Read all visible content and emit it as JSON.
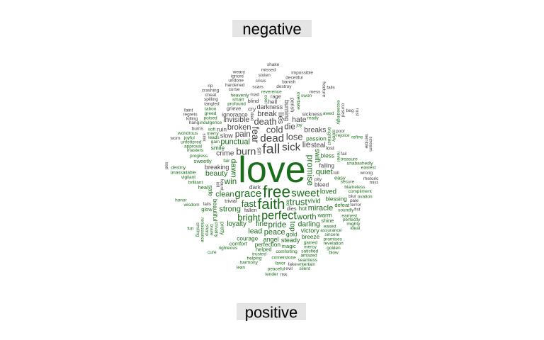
{
  "chart_data": {
    "type": "wordcloud",
    "title": "",
    "groups": [
      {
        "name": "negative",
        "color": "#444444"
      },
      {
        "name": "positive",
        "color": "#1a6e1a"
      }
    ],
    "positive_words": [
      {
        "word": "love",
        "weight": 100
      },
      {
        "word": "free",
        "weight": 36
      },
      {
        "word": "faith",
        "weight": 32
      },
      {
        "word": "perfect",
        "weight": 24
      },
      {
        "word": "grace",
        "weight": 22
      },
      {
        "word": "sweet",
        "weight": 22
      },
      {
        "word": "fast",
        "weight": 18
      },
      {
        "word": "trust",
        "weight": 18
      },
      {
        "word": "bright",
        "weight": 18
      },
      {
        "word": "promise",
        "weight": 17
      },
      {
        "word": "win",
        "weight": 16
      },
      {
        "word": "pride",
        "weight": 16
      },
      {
        "word": "clean",
        "weight": 15
      },
      {
        "word": "dawn",
        "weight": 15
      },
      {
        "word": "strong",
        "weight": 15
      },
      {
        "word": "peace",
        "weight": 15
      },
      {
        "word": "worth",
        "weight": 15
      },
      {
        "word": "punctual",
        "weight": 15
      },
      {
        "word": "miracle",
        "weight": 15
      },
      {
        "word": "quiet",
        "weight": 15
      },
      {
        "word": "beauty",
        "weight": 14
      },
      {
        "word": "darling",
        "weight": 14
      },
      {
        "word": "fine",
        "weight": 14
      },
      {
        "word": "lead",
        "weight": 14
      },
      {
        "word": "top",
        "weight": 14
      },
      {
        "word": "loyalty",
        "weight": 13
      },
      {
        "word": "loved",
        "weight": 13
      },
      {
        "word": "swift",
        "weight": 13
      },
      {
        "word": "vivid",
        "weight": 12
      },
      {
        "word": "angel",
        "weight": 12
      },
      {
        "word": "victory",
        "weight": 12
      },
      {
        "word": "steady",
        "weight": 12
      },
      {
        "word": "hot",
        "weight": 11
      },
      {
        "word": "gold",
        "weight": 11
      },
      {
        "word": "bless",
        "weight": 11
      },
      {
        "word": "warm",
        "weight": 11
      },
      {
        "word": "safe",
        "weight": 11
      },
      {
        "word": "courage",
        "weight": 11
      },
      {
        "word": "passion",
        "weight": 11
      },
      {
        "word": "perfection",
        "weight": 11
      },
      {
        "word": "smile",
        "weight": 11
      },
      {
        "word": "blessing",
        "weight": 11
      },
      {
        "word": "breeze",
        "weight": 11
      },
      {
        "word": "beautiful",
        "weight": 11
      },
      {
        "word": "easy",
        "weight": 10
      },
      {
        "word": "shine",
        "weight": 10
      },
      {
        "word": "magic",
        "weight": 10
      },
      {
        "word": "helped",
        "weight": 10
      },
      {
        "word": "heal",
        "weight": 10
      },
      {
        "word": "pretty",
        "weight": 10
      },
      {
        "word": "comfort",
        "weight": 10
      },
      {
        "word": "glow",
        "weight": 10
      },
      {
        "word": "sweetly",
        "weight": 10
      },
      {
        "word": "defeat",
        "weight": 10
      },
      {
        "word": "revel",
        "weight": 9
      },
      {
        "word": "comforting",
        "weight": 9
      },
      {
        "word": "eased",
        "weight": 9
      },
      {
        "word": "gained",
        "weight": 9
      },
      {
        "word": "secure",
        "weight": 9
      },
      {
        "word": "trusted",
        "weight": 9
      },
      {
        "word": "brilliant",
        "weight": 9
      },
      {
        "word": "chivalry",
        "weight": 9
      },
      {
        "word": "assurance",
        "weight": 9
      },
      {
        "word": "fair",
        "weight": 9
      },
      {
        "word": "gain",
        "weight": 9
      },
      {
        "word": "leads",
        "weight": 9
      },
      {
        "word": "mercy",
        "weight": 9
      },
      {
        "word": "progress",
        "weight": 9
      },
      {
        "word": "brightest",
        "weight": 9
      },
      {
        "word": "merry",
        "weight": 9
      },
      {
        "word": "soundly",
        "weight": 9
      },
      {
        "word": "cornerstone",
        "weight": 9
      },
      {
        "word": "treasure",
        "weight": 9
      },
      {
        "word": "sincere",
        "weight": 9
      },
      {
        "word": "satisfied",
        "weight": 9
      },
      {
        "word": "brave",
        "weight": 9
      },
      {
        "word": "helping",
        "weight": 9
      },
      {
        "word": "righteous",
        "weight": 9
      },
      {
        "word": "ready",
        "weight": 9
      },
      {
        "word": "blameless",
        "weight": 9
      },
      {
        "word": "wisdom",
        "weight": 9
      },
      {
        "word": "vigilant",
        "weight": 9
      },
      {
        "word": "safely",
        "weight": 9
      },
      {
        "word": "masters",
        "weight": 9
      },
      {
        "word": "earnest",
        "weight": 9
      },
      {
        "word": "promises",
        "weight": 9
      },
      {
        "word": "amazed",
        "weight": 9
      },
      {
        "word": "soft",
        "weight": 9
      },
      {
        "word": "favor",
        "weight": 9
      },
      {
        "word": "sharp",
        "weight": 9
      },
      {
        "word": "harmony",
        "weight": 9
      },
      {
        "word": "joy",
        "weight": 9
      },
      {
        "word": "approval",
        "weight": 9
      },
      {
        "word": "indulgence",
        "weight": 9
      },
      {
        "word": "compliment",
        "weight": 9
      },
      {
        "word": "rejoice",
        "weight": 9
      },
      {
        "word": "renaissance",
        "weight": 9
      },
      {
        "word": "perfectly",
        "weight": 9
      },
      {
        "word": "revelation",
        "weight": 9
      },
      {
        "word": "seamless",
        "weight": 9
      },
      {
        "word": "unassailable",
        "weight": 9
      },
      {
        "word": "unabashedly",
        "weight": 9
      },
      {
        "word": "profound",
        "weight": 9
      },
      {
        "word": "smiling",
        "weight": 9
      },
      {
        "word": "peaceful",
        "weight": 9
      },
      {
        "word": "unfettered",
        "weight": 9
      },
      {
        "word": "poised",
        "weight": 9
      },
      {
        "word": "mighty",
        "weight": 9
      },
      {
        "word": "golden",
        "weight": 9
      },
      {
        "word": "entertain",
        "weight": 9
      },
      {
        "word": "overtake",
        "weight": 9
      },
      {
        "word": "awed",
        "weight": 9
      },
      {
        "word": "honor",
        "weight": 9
      },
      {
        "word": "smart",
        "weight": 9
      },
      {
        "word": "ovation",
        "weight": 9
      },
      {
        "word": "lean",
        "weight": 9
      },
      {
        "word": "cure",
        "weight": 9
      },
      {
        "word": "led",
        "weight": 9
      },
      {
        "word": "destiny",
        "weight": 9
      },
      {
        "word": "joyful",
        "weight": 9
      },
      {
        "word": "greed",
        "weight": 9
      },
      {
        "word": "reverence",
        "weight": 9
      },
      {
        "word": "tender",
        "weight": 9
      },
      {
        "word": "heavenly",
        "weight": 9
      },
      {
        "word": "cool",
        "weight": 9
      },
      {
        "word": "fun",
        "weight": 9
      },
      {
        "word": "ideal",
        "weight": 9
      },
      {
        "word": "silent",
        "weight": 9
      },
      {
        "word": "swon",
        "weight": 9
      },
      {
        "word": "refine",
        "weight": 9
      },
      {
        "word": "easiest",
        "weight": 9
      },
      {
        "word": "exceedingly",
        "weight": 9
      },
      {
        "word": "wondrous",
        "weight": 9
      },
      {
        "word": "taboo",
        "weight": 9
      },
      {
        "word": "blow",
        "weight": 9
      }
    ],
    "negative_words": [
      {
        "word": "fall",
        "weight": 30
      },
      {
        "word": "dead",
        "weight": 22
      },
      {
        "word": "sick",
        "weight": 22
      },
      {
        "word": "burn",
        "weight": 20
      },
      {
        "word": "fear",
        "weight": 19
      },
      {
        "word": "cold",
        "weight": 18
      },
      {
        "word": "lose",
        "weight": 18
      },
      {
        "word": "death",
        "weight": 18
      },
      {
        "word": "pain",
        "weight": 16
      },
      {
        "word": "die",
        "weight": 16
      },
      {
        "word": "lie",
        "weight": 16
      },
      {
        "word": "lies",
        "weight": 15
      },
      {
        "word": "crime",
        "weight": 14
      },
      {
        "word": "broken",
        "weight": 15
      },
      {
        "word": "break",
        "weight": 15
      },
      {
        "word": "hate",
        "weight": 14
      },
      {
        "word": "breaks",
        "weight": 14
      },
      {
        "word": "invisible",
        "weight": 14
      },
      {
        "word": "steal",
        "weight": 13
      },
      {
        "word": "darkness",
        "weight": 12
      },
      {
        "word": "burning",
        "weight": 12
      },
      {
        "word": "breaking",
        "weight": 12
      },
      {
        "word": "slow",
        "weight": 12
      },
      {
        "word": "dark",
        "weight": 11
      },
      {
        "word": "ignorance",
        "weight": 11
      },
      {
        "word": "falling",
        "weight": 11
      },
      {
        "word": "bleed",
        "weight": 11
      },
      {
        "word": "ruin",
        "weight": 11
      },
      {
        "word": "cry",
        "weight": 11
      },
      {
        "word": "sin",
        "weight": 11
      },
      {
        "word": "dies",
        "weight": 10
      },
      {
        "word": "hell",
        "weight": 11
      },
      {
        "word": "lost",
        "weight": 10
      },
      {
        "word": "perish",
        "weight": 10
      },
      {
        "word": "fallen",
        "weight": 10
      },
      {
        "word": "sickness",
        "weight": 10
      },
      {
        "word": "trivial",
        "weight": 10
      },
      {
        "word": "blind",
        "weight": 10
      },
      {
        "word": "grieve",
        "weight": 10
      },
      {
        "word": "rage",
        "weight": 10
      },
      {
        "word": "scars",
        "weight": 9
      },
      {
        "word": "mad",
        "weight": 9
      },
      {
        "word": "destroy",
        "weight": 9
      },
      {
        "word": "died",
        "weight": 9
      },
      {
        "word": "burns",
        "weight": 9
      },
      {
        "word": "curse",
        "weight": 9
      },
      {
        "word": "crisis",
        "weight": 9
      },
      {
        "word": "banish",
        "weight": 9
      },
      {
        "word": "mess",
        "weight": 9
      },
      {
        "word": "tangled",
        "weight": 9
      },
      {
        "word": "haunt",
        "weight": 9
      },
      {
        "word": "hardened",
        "weight": 9
      },
      {
        "word": "spilling",
        "weight": 9
      },
      {
        "word": "poor",
        "weight": 9
      },
      {
        "word": "pity",
        "weight": 9
      },
      {
        "word": "fails",
        "weight": 9
      },
      {
        "word": "stolen",
        "weight": 9
      },
      {
        "word": "cursed",
        "weight": 9
      },
      {
        "word": "deceitful",
        "weight": 9
      },
      {
        "word": "undone",
        "weight": 9
      },
      {
        "word": "hang",
        "weight": 9
      },
      {
        "word": "killing",
        "weight": 9
      },
      {
        "word": "cheat",
        "weight": 9
      },
      {
        "word": "ignore",
        "weight": 9
      },
      {
        "word": "fracture",
        "weight": 9
      },
      {
        "word": "missed",
        "weight": 9
      },
      {
        "word": "impossible",
        "weight": 9
      },
      {
        "word": "regrets",
        "weight": 9
      },
      {
        "word": "blur",
        "weight": 9
      },
      {
        "word": "crashing",
        "weight": 9
      },
      {
        "word": "beg",
        "weight": 9
      },
      {
        "word": "kill",
        "weight": 9
      },
      {
        "word": "falls",
        "weight": 9
      },
      {
        "word": "weary",
        "weight": 9
      },
      {
        "word": "wrong",
        "weight": 9
      },
      {
        "word": "shake",
        "weight": 9
      },
      {
        "word": "drowning",
        "weight": 9
      },
      {
        "word": "rhetoric",
        "weight": 9
      },
      {
        "word": "terrible",
        "weight": 9
      },
      {
        "word": "enemy",
        "weight": 9
      },
      {
        "word": "terror",
        "weight": 9
      },
      {
        "word": "sober",
        "weight": 9
      },
      {
        "word": "worn",
        "weight": 9
      },
      {
        "word": "jaded",
        "weight": 9
      },
      {
        "word": "wounds",
        "weight": 9
      },
      {
        "word": "scream",
        "weight": 9
      },
      {
        "word": "pale",
        "weight": 9
      },
      {
        "word": "terribly",
        "weight": 9
      },
      {
        "word": "mystery",
        "weight": 9
      },
      {
        "word": "limits",
        "weight": 9
      },
      {
        "word": "misgivings",
        "weight": 9
      },
      {
        "word": "stabtwist",
        "weight": 9
      },
      {
        "word": "strange",
        "weight": 9
      },
      {
        "word": "faint",
        "weight": 9
      },
      {
        "word": "failure",
        "weight": 9
      },
      {
        "word": "mist",
        "weight": 9
      },
      {
        "word": "worry",
        "weight": 9
      },
      {
        "word": "murder",
        "weight": 9
      },
      {
        "word": "toll",
        "weight": 9
      },
      {
        "word": "sink",
        "weight": 9
      },
      {
        "word": "nemesis",
        "weight": 9
      },
      {
        "word": "stranger",
        "weight": 9
      },
      {
        "word": "prison",
        "weight": 9
      },
      {
        "word": "fake",
        "weight": 9
      },
      {
        "word": "fears",
        "weight": 9
      },
      {
        "word": "tyranny",
        "weight": 9
      },
      {
        "word": "rust",
        "weight": 9
      },
      {
        "word": "vanity",
        "weight": 9
      },
      {
        "word": "evil",
        "weight": 9
      },
      {
        "word": "violent",
        "weight": 9
      },
      {
        "word": "scared",
        "weight": 9
      },
      {
        "word": "feeble",
        "weight": 9
      },
      {
        "word": "swelling",
        "weight": 9
      },
      {
        "word": "suffering",
        "weight": 9
      },
      {
        "word": "battered",
        "weight": 9
      },
      {
        "word": "stinging",
        "weight": 9
      },
      {
        "word": "unclear",
        "weight": 9
      },
      {
        "word": "afraid",
        "weight": 9
      },
      {
        "word": "shocked",
        "weight": 9
      },
      {
        "word": "exile",
        "weight": 9
      },
      {
        "word": "crumbling",
        "weight": 9
      },
      {
        "word": "strike",
        "weight": 9
      },
      {
        "word": "darkened",
        "weight": 9
      },
      {
        "word": "begging",
        "weight": 9
      },
      {
        "word": "avenge",
        "weight": 9
      },
      {
        "word": "knife",
        "weight": 9
      },
      {
        "word": "unyielding",
        "weight": 9
      },
      {
        "word": "ragged",
        "weight": 9
      },
      {
        "word": "dust",
        "weight": 9
      },
      {
        "word": "bleeding",
        "weight": 9
      },
      {
        "word": "poison",
        "weight": 9
      },
      {
        "word": "sting",
        "weight": 9
      },
      {
        "word": "warning",
        "weight": 9
      },
      {
        "word": "fail",
        "weight": 9
      },
      {
        "word": "awful",
        "weight": 9
      },
      {
        "word": "worse",
        "weight": 9
      },
      {
        "word": "wrath",
        "weight": 9
      },
      {
        "word": "wretched",
        "weight": 9
      },
      {
        "word": "damage",
        "weight": 9
      },
      {
        "word": "concern",
        "weight": 9
      },
      {
        "word": "bitter",
        "weight": 9
      },
      {
        "word": "hard",
        "weight": 9
      },
      {
        "word": "burden",
        "weight": 9
      },
      {
        "word": "rip",
        "weight": 9
      },
      {
        "word": "cracks",
        "weight": 9
      },
      {
        "word": "accidental",
        "weight": 9
      },
      {
        "word": "cancer",
        "weight": 9
      },
      {
        "word": "squeal",
        "weight": 9
      },
      {
        "word": "crash",
        "weight": 9
      },
      {
        "word": "drained",
        "weight": 9
      },
      {
        "word": "risk",
        "weight": 9
      },
      {
        "word": "stole",
        "weight": 9
      },
      {
        "word": "fist",
        "weight": 9
      },
      {
        "word": "drunk",
        "weight": 9
      },
      {
        "word": "fell",
        "weight": 9
      },
      {
        "word": "sad",
        "weight": 9
      },
      {
        "word": "scar",
        "weight": 9
      },
      {
        "word": "dread",
        "weight": 9
      },
      {
        "word": "wasting",
        "weight": 9
      }
    ]
  }
}
